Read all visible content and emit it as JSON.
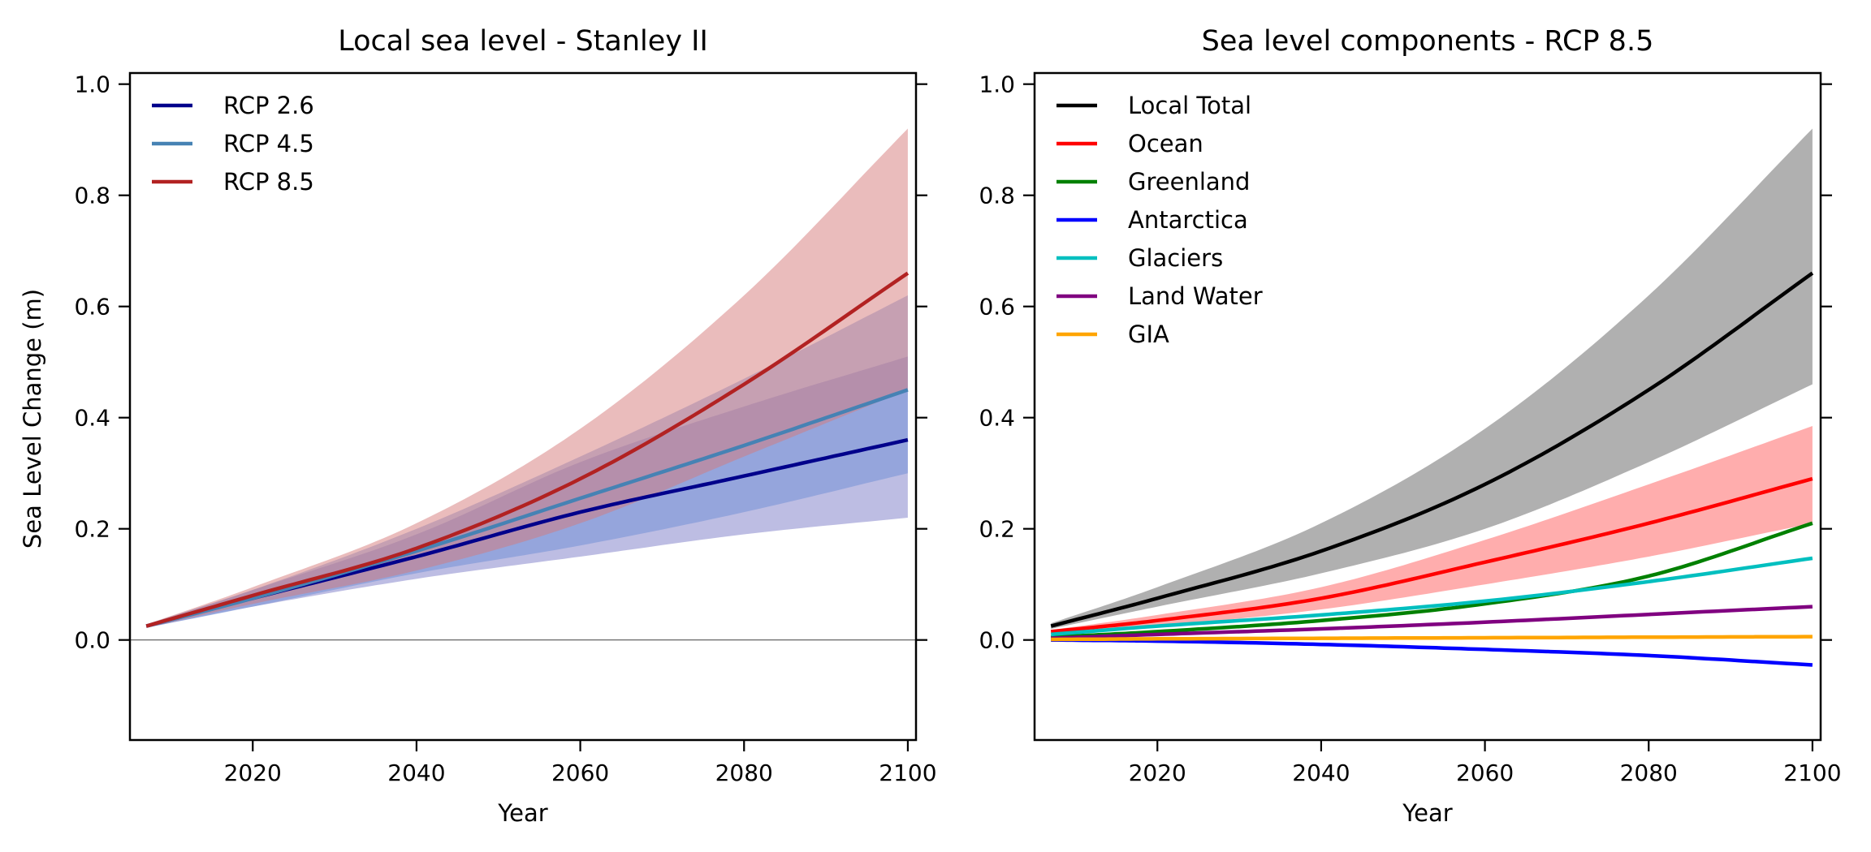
{
  "chart_data": [
    {
      "type": "area",
      "title": "Local sea level - Stanley II",
      "xlabel": "Year",
      "ylabel": "Sea Level Change (m)",
      "xlim": [
        2005,
        2101
      ],
      "ylim": [
        -0.18,
        1.02
      ],
      "xticks": [
        "2020",
        "2040",
        "2060",
        "2080",
        "2100"
      ],
      "yticks": [
        "0.0",
        "0.2",
        "0.4",
        "0.6",
        "0.8",
        "1.0"
      ],
      "zero_line": true,
      "legend": "top-left",
      "x": [
        2007,
        2020,
        2040,
        2060,
        2080,
        2100
      ],
      "series": [
        {
          "name": "RCP 2.6",
          "color": "#00008b",
          "band_color": "#7b7bc8",
          "values": [
            0.025,
            0.075,
            0.15,
            0.23,
            0.295,
            0.36
          ],
          "lower": [
            0.022,
            0.06,
            0.11,
            0.15,
            0.19,
            0.22
          ],
          "upper": [
            0.028,
            0.09,
            0.19,
            0.32,
            0.42,
            0.51
          ]
        },
        {
          "name": "RCP 4.5",
          "color": "#4682b4",
          "band_color": "#6e8ed6",
          "values": [
            0.025,
            0.075,
            0.16,
            0.255,
            0.35,
            0.45
          ],
          "lower": [
            0.022,
            0.06,
            0.12,
            0.17,
            0.23,
            0.3
          ],
          "upper": [
            0.028,
            0.09,
            0.2,
            0.33,
            0.47,
            0.62
          ]
        },
        {
          "name": "RCP 8.5",
          "color": "#b22222",
          "band_color": "#d57a7a",
          "values": [
            0.025,
            0.08,
            0.165,
            0.29,
            0.46,
            0.66
          ],
          "lower": [
            0.022,
            0.065,
            0.125,
            0.21,
            0.33,
            0.45
          ],
          "upper": [
            0.028,
            0.095,
            0.21,
            0.38,
            0.62,
            0.92
          ]
        }
      ]
    },
    {
      "type": "area",
      "title": "Sea level components - RCP 8.5",
      "xlabel": "Year",
      "ylabel": "",
      "xlim": [
        2005,
        2101
      ],
      "ylim": [
        -0.18,
        1.02
      ],
      "xticks": [
        "2020",
        "2040",
        "2060",
        "2080",
        "2100"
      ],
      "yticks": [
        "0.0",
        "0.2",
        "0.4",
        "0.6",
        "0.8",
        "1.0"
      ],
      "zero_line": false,
      "legend": "top-left",
      "x": [
        2007,
        2020,
        2040,
        2060,
        2080,
        2100
      ],
      "series": [
        {
          "name": "Local Total",
          "color": "#000000",
          "band_color": "#b0b0b0",
          "values": [
            0.025,
            0.075,
            0.16,
            0.28,
            0.45,
            0.66
          ],
          "lower": [
            0.02,
            0.06,
            0.12,
            0.2,
            0.32,
            0.46
          ],
          "upper": [
            0.03,
            0.095,
            0.21,
            0.38,
            0.62,
            0.92
          ]
        },
        {
          "name": "Ocean",
          "color": "#ff0000",
          "band_color": "#ffadad",
          "values": [
            0.015,
            0.035,
            0.075,
            0.14,
            0.21,
            0.29
          ],
          "lower": [
            0.012,
            0.025,
            0.055,
            0.1,
            0.15,
            0.21
          ],
          "upper": [
            0.018,
            0.045,
            0.095,
            0.18,
            0.28,
            0.385
          ]
        },
        {
          "name": "Greenland",
          "color": "#008000",
          "values": [
            0.005,
            0.015,
            0.035,
            0.065,
            0.115,
            0.21
          ]
        },
        {
          "name": "Antarctica",
          "color": "#0000ff",
          "values": [
            0.0,
            -0.002,
            -0.008,
            -0.017,
            -0.028,
            -0.045
          ]
        },
        {
          "name": "Glaciers",
          "color": "#00bfbf",
          "values": [
            0.01,
            0.025,
            0.045,
            0.07,
            0.105,
            0.147
          ]
        },
        {
          "name": "Land Water",
          "color": "#800080",
          "values": [
            0.003,
            0.01,
            0.02,
            0.032,
            0.046,
            0.06
          ]
        },
        {
          "name": "GIA",
          "color": "#ffa500",
          "values": [
            0.001,
            0.002,
            0.003,
            0.004,
            0.005,
            0.006
          ]
        }
      ]
    }
  ]
}
